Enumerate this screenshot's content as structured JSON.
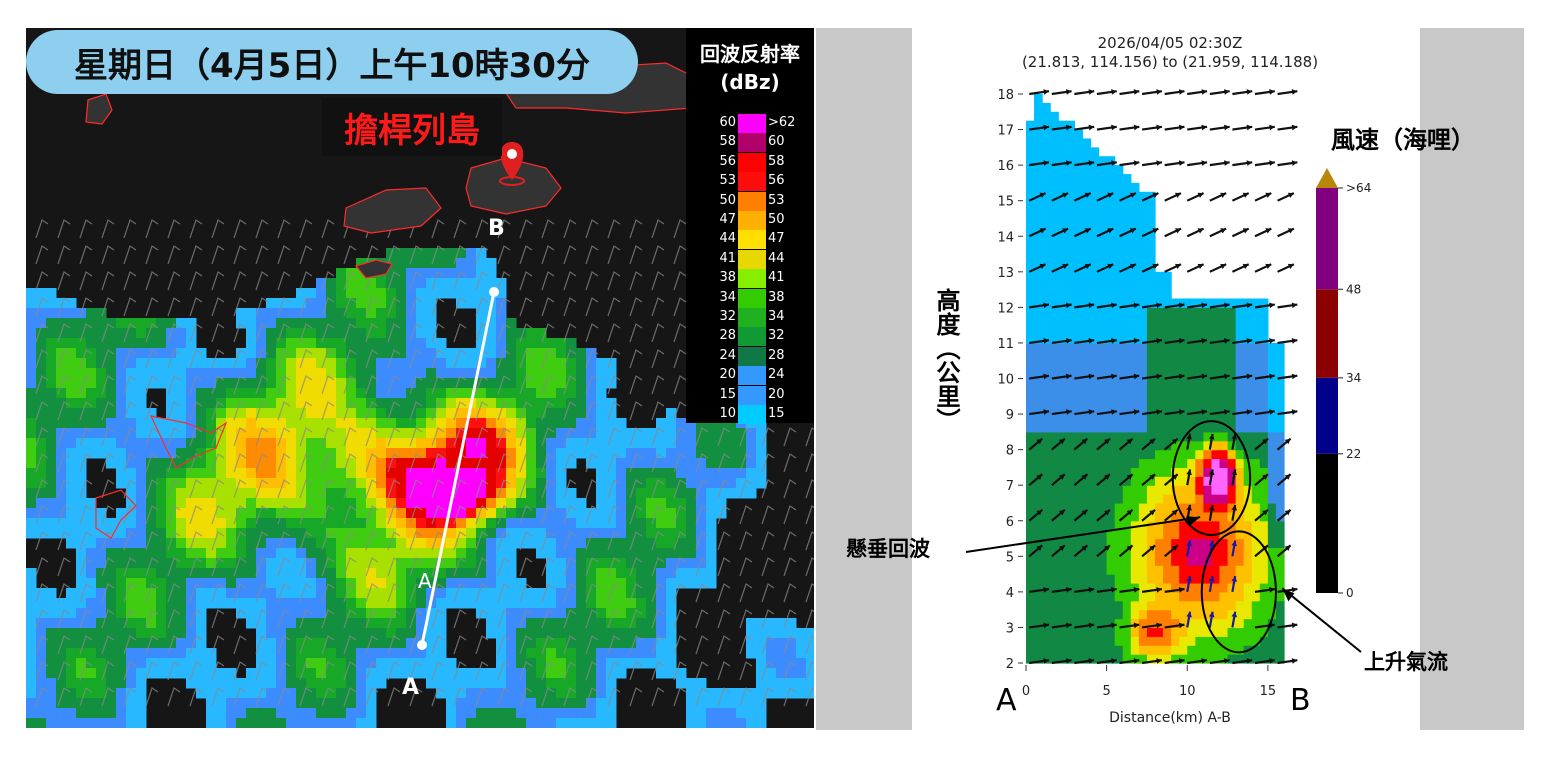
{
  "left": {
    "time_label": "星期日（4月5日）上午10時30分",
    "place_label": "擔桿列島",
    "point_a": "A",
    "point_b": "B",
    "legend": {
      "title_line1": "回波反射率",
      "title_line2": "(dBz)",
      "rows": [
        {
          "low": "60",
          "high": ">62",
          "color": "#ff00ff"
        },
        {
          "low": "58",
          "high": "60",
          "color": "#b0006a"
        },
        {
          "low": "56",
          "high": "58",
          "color": "#ff0000"
        },
        {
          "low": "53",
          "high": "56",
          "color": "#ff0c0c"
        },
        {
          "low": "50",
          "high": "53",
          "color": "#ff8000"
        },
        {
          "low": "47",
          "high": "50",
          "color": "#ffb000"
        },
        {
          "low": "44",
          "high": "47",
          "color": "#ffe000"
        },
        {
          "low": "41",
          "high": "44",
          "color": "#e6d800"
        },
        {
          "low": "38",
          "high": "41",
          "color": "#88ee00"
        },
        {
          "low": "34",
          "high": "38",
          "color": "#33cc00"
        },
        {
          "low": "32",
          "high": "34",
          "color": "#20b020"
        },
        {
          "low": "28",
          "high": "32",
          "color": "#119933"
        },
        {
          "low": "24",
          "high": "28",
          "color": "#117744"
        },
        {
          "low": "20",
          "high": "24",
          "color": "#3399ff"
        },
        {
          "low": "15",
          "high": "20",
          "color": "#3399ff"
        },
        {
          "low": "10",
          "high": "15",
          "color": "#00ccff"
        }
      ]
    }
  },
  "chart_data": {
    "type": "heatmap",
    "title": "2026/04/05 02:30Z",
    "subtitle": "(21.813, 114.156) to (21.959, 114.188)",
    "xlabel": "Distance(km) A-B",
    "ylabel": "高度（公里）",
    "x_ticks": [
      0,
      5,
      10,
      15
    ],
    "y_ticks": [
      2,
      3,
      4,
      5,
      6,
      7,
      8,
      9,
      10,
      11,
      12,
      13,
      14,
      15,
      16,
      17,
      18
    ],
    "xlim": [
      0,
      16.5
    ],
    "ylim": [
      1.9,
      18.2
    ],
    "end_label_a": "A",
    "end_label_b": "B",
    "colorbar": {
      "title": "風速（海哩）",
      "ticks": [
        "0",
        "22",
        "34",
        "48",
        ">64"
      ],
      "values": [
        0,
        22,
        34,
        48,
        64
      ],
      "colors": [
        "#000000",
        "#00008b",
        "#8b0000",
        "#800080",
        "#b8860b"
      ]
    },
    "annotations": [
      {
        "text": "懸垂回波",
        "x": 10.8,
        "y": 6.1
      },
      {
        "text": "上升氣流",
        "x": 15.9,
        "y": 4.1
      }
    ],
    "highlight_ellipses": [
      {
        "center": [
          11.5,
          7.2
        ],
        "radius_x": 2.4,
        "radius_y": 1.6
      },
      {
        "center": [
          13.2,
          4.0
        ],
        "radius_x": 2.3,
        "radius_y": 1.7
      }
    ]
  }
}
